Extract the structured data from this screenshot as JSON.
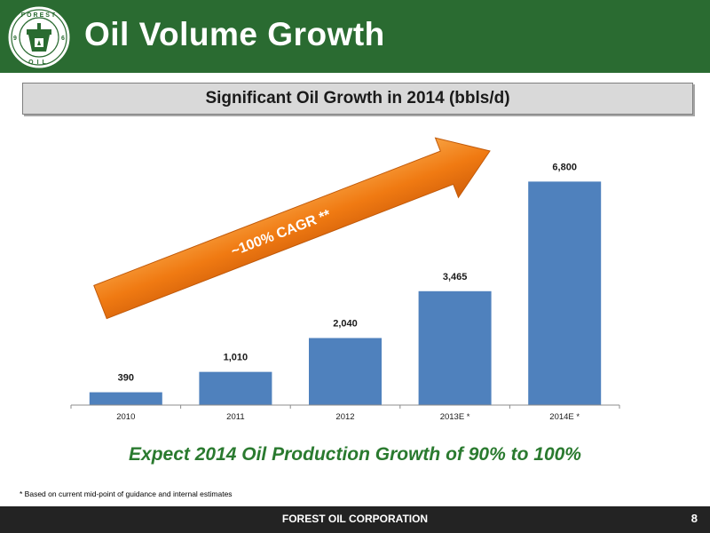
{
  "header": {
    "title": "Oil Volume Growth",
    "logo": {
      "letters_top": "FOREST",
      "letters_bottom": "OIL",
      "left_digit": "9",
      "right_digit": "6"
    }
  },
  "subtitle": "Significant Oil Growth in 2014 (bbls/d)",
  "colors": {
    "header_green": "#2a6b31",
    "bar_blue": "#4f81bd",
    "arrow_orange": "#f07a12",
    "conclusion_green": "#2a7a2f",
    "footer_dark": "#232323"
  },
  "arrow_label": "~100% CAGR **",
  "chart_data": {
    "type": "bar",
    "categories": [
      "2010",
      "2011",
      "2012",
      "2013E *",
      "2014E *"
    ],
    "values": [
      390,
      1010,
      2040,
      3465,
      6800
    ],
    "value_labels": [
      "390",
      "1,010",
      "2,040",
      "3,465",
      "6,800"
    ],
    "title": "Significant Oil Growth in 2014 (bbls/d)",
    "xlabel": "",
    "ylabel": "",
    "ylim": [
      0,
      8000
    ],
    "grid": false,
    "annotation": "~100% CAGR **"
  },
  "conclusion": "Expect 2014 Oil Production Growth of 90% to 100%",
  "footnote": "* Based on current mid-point of guidance and internal estimates",
  "footer": {
    "company": "FOREST OIL CORPORATION",
    "page": "8"
  }
}
